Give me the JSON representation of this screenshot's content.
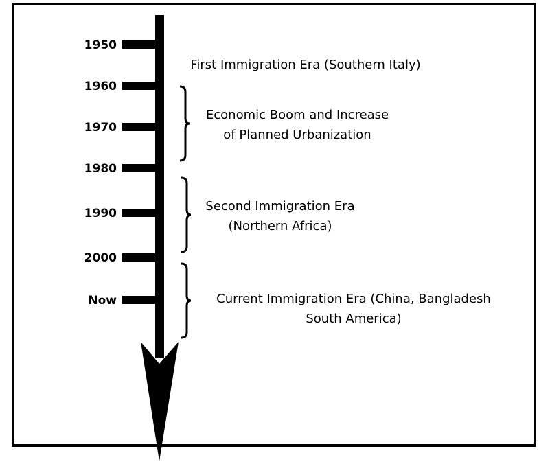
{
  "ticks": [
    "1950",
    "1960",
    "1970",
    "1980",
    "1990",
    "2000",
    "Now"
  ],
  "eras": [
    {
      "lines": [
        "First Immigration Era (Southern Italy)"
      ]
    },
    {
      "lines": [
        "Economic Boom and Increase",
        "of Planned Urbanization"
      ]
    },
    {
      "lines": [
        "Second Immigration Era",
        "(Northern Africa)"
      ]
    },
    {
      "lines": [
        "Current Immigration Era (China, Bangladesh",
        "South America)"
      ]
    }
  ]
}
